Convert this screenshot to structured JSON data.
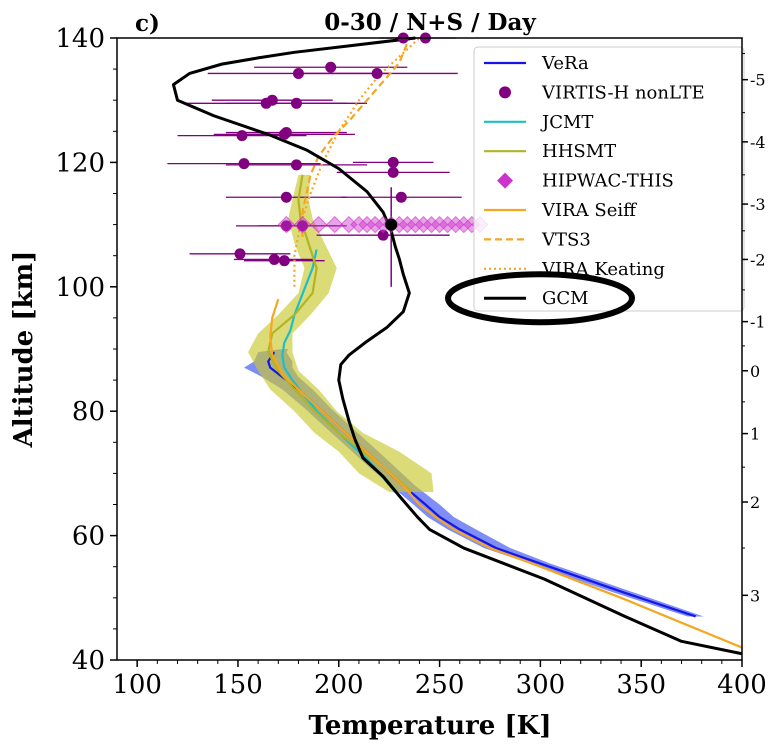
{
  "chart_data": {
    "type": "line",
    "panel_label": "c)",
    "title": "0-30 / N+S / Day",
    "xlabel": "Temperature [K]",
    "ylabel": "Altitude [km]",
    "xlim": [
      90,
      400
    ],
    "ylim": [
      40,
      140
    ],
    "xticks": [
      "100",
      "150",
      "200",
      "250",
      "300",
      "350",
      "400"
    ],
    "yticks": [
      "40",
      "60",
      "80",
      "100",
      "120",
      "140"
    ],
    "right_ticks": [
      {
        "label": "-5",
        "alt": 133.3
      },
      {
        "label": "-4",
        "alt": 123.3
      },
      {
        "label": "-3",
        "alt": 113.3
      },
      {
        "label": "-2",
        "alt": 104.4
      },
      {
        "label": "-1",
        "alt": 94.4
      },
      {
        "label": "0",
        "alt": 86.5
      },
      {
        "label": "1",
        "alt": 76.4
      },
      {
        "label": "2",
        "alt": 65.4
      },
      {
        "label": "3",
        "alt": 50.4
      }
    ],
    "legend_placement": "top-right",
    "series": [
      {
        "name": "VeRa",
        "color": "#1515e6",
        "style": "solid",
        "x": [
          377,
          340,
          300,
          278,
          260,
          250,
          243,
          232,
          222,
          212,
          200,
          190,
          180,
          172,
          166,
          165,
          168
        ],
        "y": [
          47,
          51,
          55.5,
          58,
          61,
          63,
          65,
          68,
          71,
          74,
          77.5,
          80.5,
          83.5,
          85.5,
          87,
          88,
          89.5
        ],
        "band": {
          "color": "#3a52f2",
          "x_lo": [
            373,
            335,
            295,
            272,
            254,
            244,
            237,
            226,
            215,
            205,
            193,
            183,
            172,
            162,
            153,
            158,
            160,
            172
          ],
          "x_hi": [
            381,
            345,
            305,
            285,
            268,
            257,
            250,
            238,
            228,
            218,
            206,
            196,
            187,
            180,
            177,
            177,
            174,
            175
          ],
          "y": [
            47,
            51,
            55.5,
            58,
            61,
            63,
            65,
            68,
            71,
            74,
            77.5,
            80.5,
            83.5,
            85.5,
            87,
            88,
            89.5,
            90
          ]
        }
      },
      {
        "name": "VIRTIS-H nonLTE",
        "color": "#800080",
        "style": "errorbar",
        "points": [
          {
            "x": 243,
            "y": 140,
            "err": 15
          },
          {
            "x": 232,
            "y": 140,
            "err": 12
          },
          {
            "x": 196,
            "y": 135.3,
            "err": 38
          },
          {
            "x": 219,
            "y": 134.3,
            "err": 40
          },
          {
            "x": 180,
            "y": 134.3,
            "err": 45
          },
          {
            "x": 167,
            "y": 130,
            "err": 30
          },
          {
            "x": 164,
            "y": 129.5,
            "err": 40
          },
          {
            "x": 179,
            "y": 129.5,
            "err": 35
          },
          {
            "x": 174,
            "y": 124.8,
            "err": 30
          },
          {
            "x": 173,
            "y": 124.5,
            "err": 35
          },
          {
            "x": 152,
            "y": 124.3,
            "err": 32
          },
          {
            "x": 227,
            "y": 120,
            "err": 20
          },
          {
            "x": 179,
            "y": 119.6,
            "err": 35
          },
          {
            "x": 153,
            "y": 119.8,
            "err": 38
          },
          {
            "x": 227,
            "y": 118.4,
            "err": 28
          },
          {
            "x": 174,
            "y": 114.4,
            "err": 30
          },
          {
            "x": 231,
            "y": 114.4,
            "err": 30
          },
          {
            "x": 174,
            "y": 109.8,
            "err": 25
          },
          {
            "x": 182,
            "y": 109.8,
            "err": 22
          },
          {
            "x": 222,
            "y": 108.3,
            "err": 33
          },
          {
            "x": 151,
            "y": 105.3,
            "err": 25
          },
          {
            "x": 168,
            "y": 104.4,
            "err": 20
          },
          {
            "x": 173,
            "y": 104.2,
            "err": 20
          }
        ]
      },
      {
        "name": "JCMT",
        "color": "#1cbfc9",
        "style": "solid",
        "x": [
          228,
          215,
          205,
          197,
          189,
          183,
          177,
          173,
          172,
          173,
          176,
          178,
          181,
          184,
          187,
          189
        ],
        "y": [
          67,
          72,
          75,
          77.5,
          80,
          82.5,
          85,
          87,
          89,
          91,
          93,
          95.5,
          98,
          100.5,
          103,
          106
        ]
      },
      {
        "name": "HHSMT",
        "color": "#b3b324",
        "style": "solid",
        "x": [
          236,
          226,
          212,
          200,
          188,
          178,
          170,
          165,
          167,
          178,
          187,
          189,
          185,
          181,
          180,
          182
        ],
        "y": [
          67,
          70,
          73.5,
          76.5,
          80,
          83.5,
          86.5,
          89.5,
          92.5,
          95.5,
          99,
          103,
          107,
          111,
          114,
          118
        ],
        "band": {
          "color": "#c7c730",
          "x_lo": [
            225,
            210,
            200,
            188,
            178,
            166,
            160,
            155,
            160,
            170,
            180,
            183,
            178,
            175,
            177,
            180
          ],
          "x_hi": [
            247,
            246,
            230,
            212,
            199,
            190,
            180,
            177,
            177,
            186,
            195,
            199,
            193,
            187,
            185,
            186
          ],
          "y": [
            67,
            70,
            73.5,
            76.5,
            80,
            83.5,
            86.5,
            89.5,
            92.5,
            95.5,
            99,
            103,
            107,
            111,
            114,
            118
          ]
        }
      },
      {
        "name": "HIPWAC-THIS",
        "color": "#cc33cc",
        "style": "diamonds",
        "x": [
          174,
          182,
          190,
          198,
          205,
          210,
          214,
          218,
          222,
          226,
          230,
          234,
          238,
          242,
          246,
          250,
          254,
          258,
          262,
          266,
          270
        ],
        "y": [
          110,
          110,
          110,
          110,
          110,
          110,
          110,
          110,
          110,
          110,
          110,
          110,
          110,
          110,
          110,
          110,
          110,
          110,
          110,
          110,
          110
        ]
      },
      {
        "name": "VIRA Seiff",
        "color": "#f5a623",
        "style": "solid",
        "x": [
          400,
          370,
          340,
          300,
          275,
          257,
          248,
          240,
          232,
          222,
          212,
          200,
          190,
          180,
          172,
          167,
          166,
          167,
          170
        ],
        "y": [
          42,
          46,
          50,
          55,
          58,
          61,
          63,
          65,
          68,
          71,
          74,
          77.5,
          80.5,
          83.5,
          86,
          89,
          92,
          95,
          98
        ]
      },
      {
        "name": "VTS3",
        "color": "#f5a623",
        "style": "dashed",
        "x": [
          182,
          182,
          184,
          186,
          190,
          197,
          206,
          214,
          222,
          230,
          235
        ],
        "y": [
          108,
          112,
          115,
          118,
          121,
          124,
          127,
          130,
          133,
          136,
          140
        ]
      },
      {
        "name": "VIRA Keating",
        "color": "#f5a623",
        "style": "dotted",
        "x": [
          178,
          178,
          181,
          186,
          192,
          200,
          210,
          220,
          230,
          240
        ],
        "y": [
          100,
          105,
          110,
          115,
          120,
          125,
          130,
          134,
          137,
          140
        ]
      },
      {
        "name": "GCM",
        "color": "#000000",
        "style": "solid",
        "x": [
          400,
          370,
          342,
          302,
          262,
          245,
          239,
          231,
          222,
          212,
          208,
          205,
          202,
          200,
          201,
          205,
          213,
          224,
          232,
          235,
          232,
          230,
          228,
          226,
          222,
          214,
          200,
          184,
          165,
          138,
          120,
          118,
          126,
          142,
          160,
          178,
          204,
          238
        ],
        "y": [
          41,
          43,
          47,
          53,
          58,
          61,
          63,
          66,
          69.5,
          72.5,
          75.5,
          78.5,
          82,
          85,
          87.5,
          89,
          91,
          93.5,
          96,
          99,
          102,
          104.5,
          106.5,
          109,
          112,
          115.3,
          119,
          122,
          124.5,
          127.5,
          130,
          132.5,
          134.3,
          135.8,
          136.8,
          137.7,
          138.7,
          140
        ]
      }
    ],
    "annotation": {
      "type": "ellipse",
      "target": "GCM",
      "color": "#000000"
    }
  }
}
